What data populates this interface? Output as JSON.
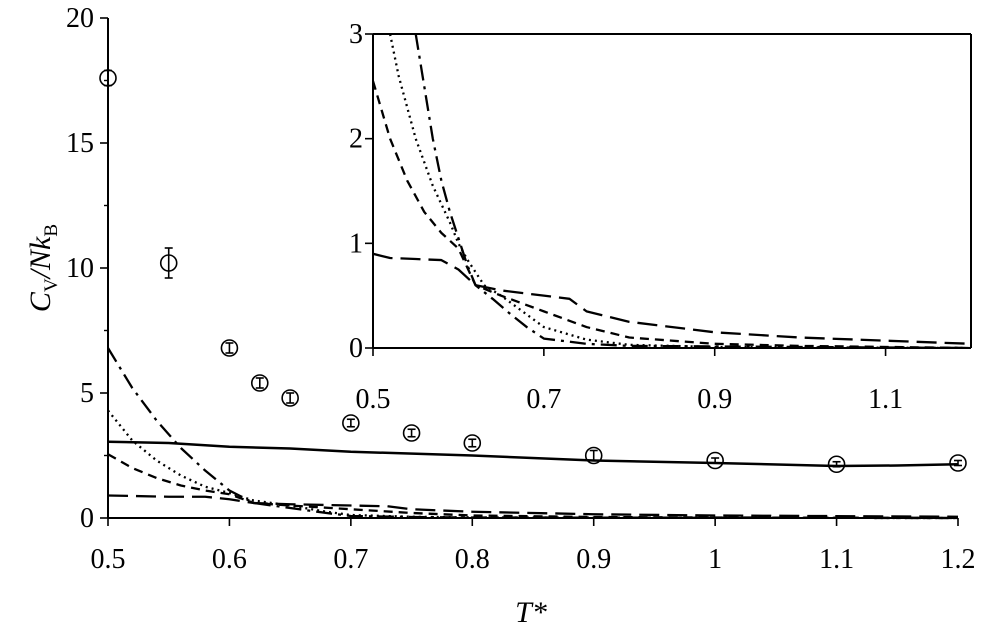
{
  "chart_data": [
    {
      "id": "main",
      "type": "line",
      "xlabel": "T*",
      "ylabel": "C_V/Nk_B",
      "ylabel_parts": {
        "main": "C",
        "sub1": "V",
        "mid": "/N",
        "k": "k",
        "sub2": "B"
      },
      "xlim": [
        0.5,
        1.2
      ],
      "ylim": [
        0,
        20
      ],
      "xticks": [
        "0.5",
        "0.6",
        "0.7",
        "0.8",
        "0.9",
        "1",
        "1.1",
        "1.2"
      ],
      "yticks": [
        "0",
        "5",
        "10",
        "15",
        "20"
      ],
      "grid": false,
      "legend": "none",
      "series": [
        {
          "style": "markers-errorbars",
          "points": [
            {
              "x": 0.5,
              "y": 17.6,
              "err": 0.3
            },
            {
              "x": 0.55,
              "y": 10.2,
              "err": 0.6
            },
            {
              "x": 0.6,
              "y": 6.8,
              "err": 0.2
            },
            {
              "x": 0.625,
              "y": 5.4,
              "err": 0.2
            },
            {
              "x": 0.65,
              "y": 4.8,
              "err": 0.2
            },
            {
              "x": 0.7,
              "y": 3.8,
              "err": 0.15
            },
            {
              "x": 0.75,
              "y": 3.4,
              "err": 0.15
            },
            {
              "x": 0.8,
              "y": 3.0,
              "err": 0.15
            },
            {
              "x": 0.9,
              "y": 2.5,
              "err": 0.2
            },
            {
              "x": 1.0,
              "y": 2.3,
              "err": 0.1
            },
            {
              "x": 1.1,
              "y": 2.15,
              "err": 0.1
            },
            {
              "x": 1.2,
              "y": 2.2,
              "err": 0.1
            }
          ]
        },
        {
          "style": "solid",
          "x": [
            0.5,
            0.55,
            0.6,
            0.65,
            0.7,
            0.8,
            0.9,
            1.0,
            1.1,
            1.15,
            1.2
          ],
          "y": [
            3.05,
            3.0,
            2.85,
            2.78,
            2.65,
            2.5,
            2.3,
            2.2,
            2.08,
            2.1,
            2.15
          ]
        },
        {
          "style": "dash-dot",
          "x": [
            0.5,
            0.52,
            0.54,
            0.56,
            0.58,
            0.6,
            0.62,
            0.65,
            0.68,
            0.7,
            0.75,
            0.8,
            1.2
          ],
          "y": [
            6.8,
            5.2,
            3.9,
            2.8,
            1.9,
            1.1,
            0.6,
            0.4,
            0.2,
            0.08,
            0.04,
            0.02,
            0.0
          ]
        },
        {
          "style": "dotted",
          "x": [
            0.5,
            0.52,
            0.54,
            0.56,
            0.58,
            0.6,
            0.62,
            0.65,
            0.68,
            0.7,
            0.75,
            0.8,
            1.2
          ],
          "y": [
            4.3,
            3.1,
            2.3,
            1.7,
            1.25,
            1.0,
            0.7,
            0.5,
            0.25,
            0.12,
            0.05,
            0.02,
            0.0
          ]
        },
        {
          "style": "short-dash",
          "x": [
            0.5,
            0.52,
            0.54,
            0.56,
            0.58,
            0.6,
            0.62,
            0.65,
            0.7,
            0.75,
            0.8,
            0.9,
            1.0,
            1.2
          ],
          "y": [
            2.55,
            2.0,
            1.6,
            1.3,
            1.1,
            0.95,
            0.6,
            0.5,
            0.35,
            0.2,
            0.1,
            0.04,
            0.02,
            0.0
          ]
        },
        {
          "style": "long-dash",
          "x": [
            0.5,
            0.55,
            0.58,
            0.6,
            0.62,
            0.65,
            0.7,
            0.73,
            0.75,
            0.8,
            0.9,
            1.0,
            1.2
          ],
          "y": [
            0.9,
            0.85,
            0.85,
            0.75,
            0.6,
            0.55,
            0.5,
            0.47,
            0.35,
            0.25,
            0.15,
            0.1,
            0.05
          ]
        }
      ]
    },
    {
      "id": "inset",
      "type": "line",
      "xlim": [
        0.5,
        1.2
      ],
      "ylim": [
        0,
        3
      ],
      "xticks": [
        "0.5",
        "0.7",
        "0.9",
        "1.1"
      ],
      "yticks": [
        "0",
        "1",
        "2",
        "3"
      ],
      "grid": false,
      "legend": "none",
      "series": [
        {
          "style": "dash-dot",
          "x": [
            0.55,
            0.56,
            0.57,
            0.58,
            0.59,
            0.6,
            0.61,
            0.62,
            0.64,
            0.66,
            0.68,
            0.7,
            0.75,
            0.8,
            1.2
          ],
          "y": [
            3.0,
            2.5,
            2.0,
            1.6,
            1.3,
            1.05,
            0.8,
            0.6,
            0.47,
            0.33,
            0.2,
            0.09,
            0.04,
            0.02,
            0.0
          ]
        },
        {
          "style": "dotted",
          "x": [
            0.52,
            0.53,
            0.55,
            0.57,
            0.59,
            0.6,
            0.61,
            0.63,
            0.65,
            0.7,
            0.75,
            0.8,
            0.9,
            1.2
          ],
          "y": [
            3.0,
            2.6,
            2.0,
            1.55,
            1.2,
            1.0,
            0.85,
            0.6,
            0.5,
            0.2,
            0.08,
            0.03,
            0.01,
            0.0
          ]
        },
        {
          "style": "short-dash",
          "x": [
            0.5,
            0.52,
            0.54,
            0.56,
            0.58,
            0.6,
            0.62,
            0.65,
            0.7,
            0.75,
            0.8,
            0.9,
            1.0,
            1.2
          ],
          "y": [
            2.55,
            2.0,
            1.6,
            1.3,
            1.1,
            0.95,
            0.6,
            0.5,
            0.35,
            0.2,
            0.1,
            0.04,
            0.02,
            0.0
          ]
        },
        {
          "style": "long-dash",
          "x": [
            0.5,
            0.52,
            0.55,
            0.58,
            0.6,
            0.62,
            0.65,
            0.7,
            0.73,
            0.75,
            0.8,
            0.9,
            1.0,
            1.1,
            1.2
          ],
          "y": [
            0.9,
            0.86,
            0.85,
            0.84,
            0.75,
            0.6,
            0.55,
            0.5,
            0.47,
            0.35,
            0.25,
            0.15,
            0.1,
            0.07,
            0.04
          ]
        }
      ]
    }
  ]
}
